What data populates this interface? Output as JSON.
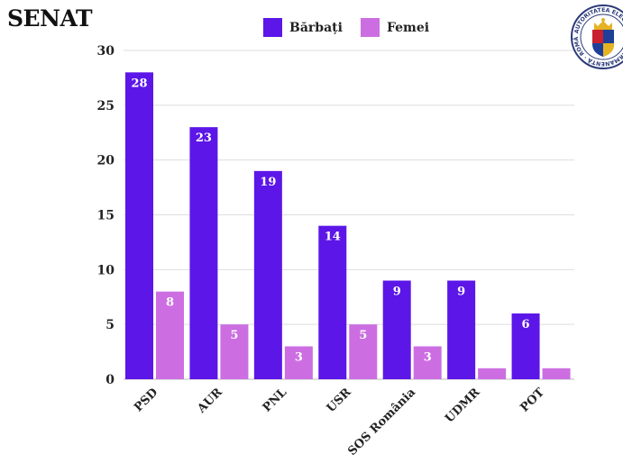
{
  "title": "SENAT",
  "legend": [
    {
      "label": "Bărbați",
      "color": "#5c16e8"
    },
    {
      "label": "Femei",
      "color": "#cc6ee2"
    }
  ],
  "logo": {
    "text": "AUTORITATEA ELECTORALĂ PERMANENTĂ · ROMÂNIA"
  },
  "chart_data": {
    "type": "bar",
    "categories": [
      "PSD",
      "AUR",
      "PNL",
      "USR",
      "SOS România",
      "UDMR",
      "POT"
    ],
    "series": [
      {
        "name": "Bărbați",
        "values": [
          28,
          23,
          19,
          14,
          9,
          9,
          6
        ],
        "color": "#5c16e8",
        "labels": [
          "28",
          "23",
          "19",
          "14",
          "9",
          "9",
          "6"
        ]
      },
      {
        "name": "Femei",
        "values": [
          8,
          5,
          3,
          5,
          3,
          1,
          1
        ],
        "color": "#cc6ee2",
        "labels": [
          "8",
          "5",
          "3",
          "5",
          "3",
          "",
          ""
        ]
      }
    ],
    "ylim": [
      0,
      30
    ],
    "yticks": [
      0,
      5,
      10,
      15,
      20,
      25,
      30
    ],
    "grid": true,
    "legend_position": "top-center",
    "xlabel": "",
    "ylabel": ""
  }
}
